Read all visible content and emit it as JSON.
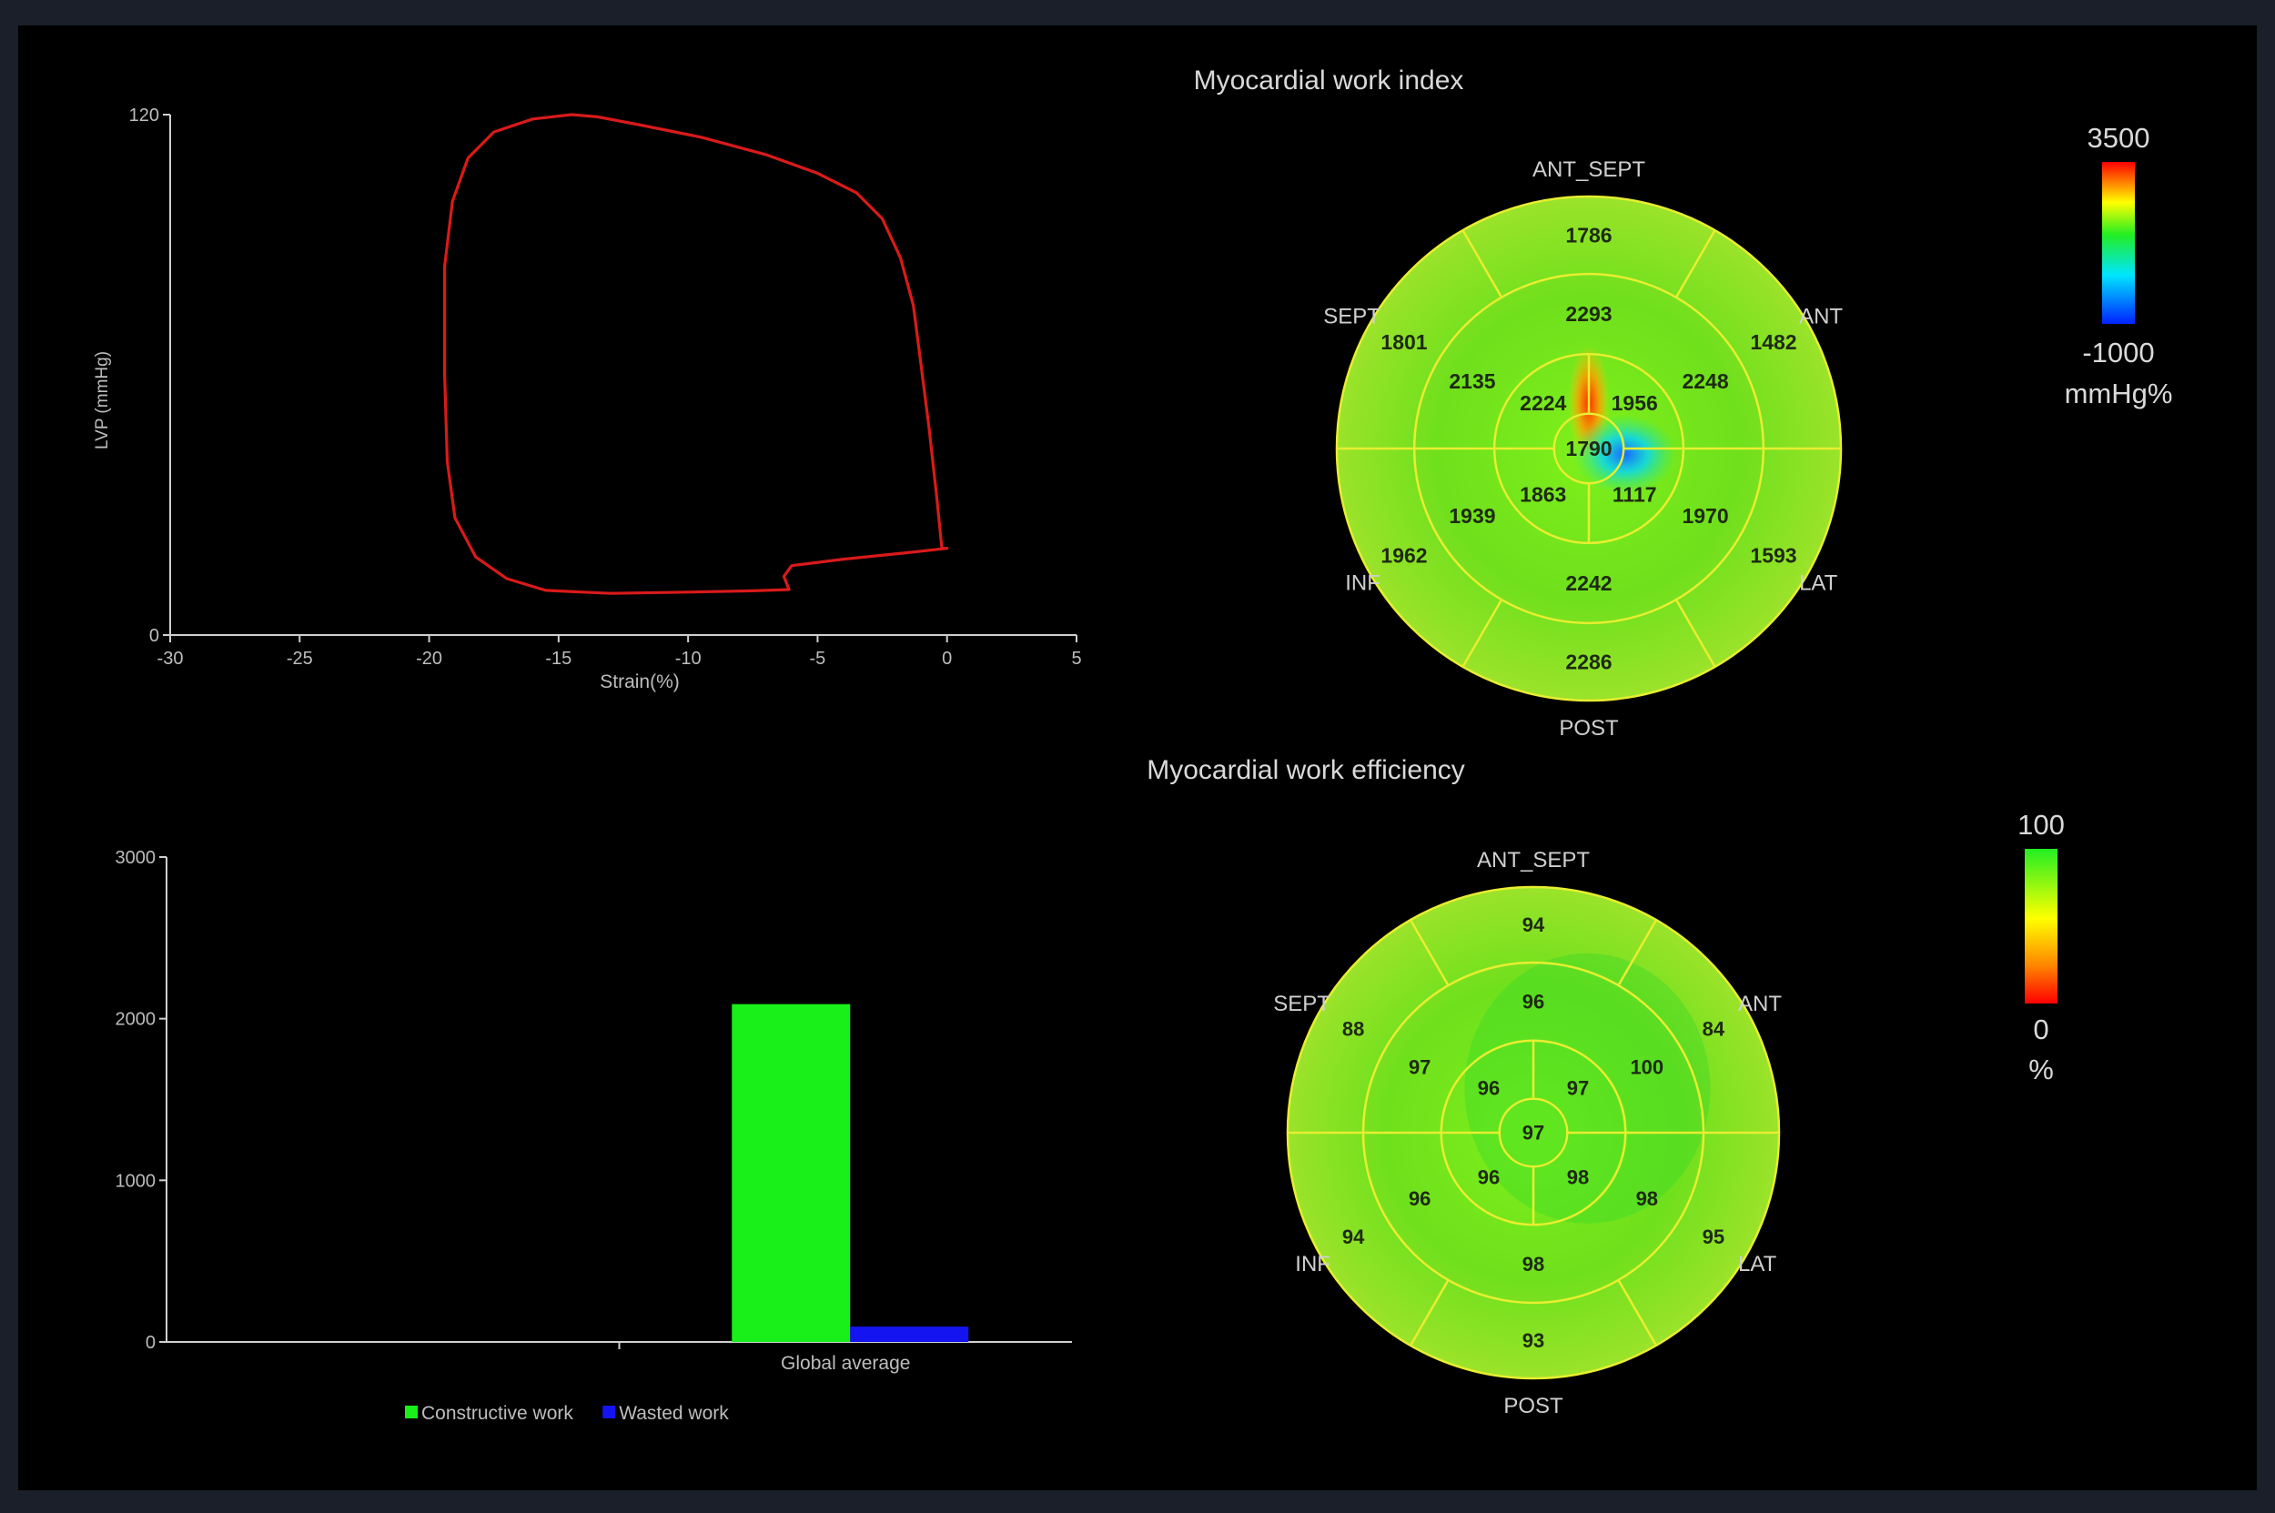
{
  "chart_data": [
    {
      "id": "pv_loop",
      "type": "line",
      "xlabel": "Strain(%)",
      "ylabel": "LVP (mmHg)",
      "xlim": [
        -30,
        5
      ],
      "ylim": [
        0,
        120
      ],
      "xticks": [
        "-30",
        "-25",
        "-20",
        "-15",
        "-10",
        "-5",
        "0",
        "5"
      ],
      "yticks": [
        "0",
        "120"
      ],
      "series": [
        {
          "color": "#d91a1a",
          "points": [
            [
              -14.5,
              120
            ],
            [
              -13.5,
              119.5
            ],
            [
              -12,
              117.8
            ],
            [
              -9.5,
              114.8
            ],
            [
              -7,
              110.8
            ],
            [
              -5,
              106.5
            ],
            [
              -3.5,
              102
            ],
            [
              -2.5,
              96
            ],
            [
              -1.8,
              87
            ],
            [
              -1.3,
              76
            ],
            [
              -1.0,
              62
            ],
            [
              -0.7,
              48
            ],
            [
              -0.4,
              32
            ],
            [
              -0.2,
              20
            ],
            [
              0,
              20
            ],
            [
              -1.5,
              19
            ],
            [
              -4,
              17.5
            ],
            [
              -6,
              16
            ],
            [
              -6.3,
              13.5
            ],
            [
              -6.1,
              10.5
            ],
            [
              -7.5,
              10.2
            ],
            [
              -10,
              9.9
            ],
            [
              -13,
              9.6
            ],
            [
              -15.5,
              10.3
            ],
            [
              -17,
              13
            ],
            [
              -18.2,
              18
            ],
            [
              -19,
              27
            ],
            [
              -19.3,
              40
            ],
            [
              -19.4,
              60
            ],
            [
              -19.4,
              85
            ],
            [
              -19.1,
              100
            ],
            [
              -18.5,
              110
            ],
            [
              -17.5,
              116
            ],
            [
              -16,
              119
            ],
            [
              -14.5,
              120
            ]
          ]
        }
      ]
    },
    {
      "id": "work_bar",
      "type": "bar",
      "categories": [
        "",
        "Global average"
      ],
      "ylim": [
        0,
        3000
      ],
      "yticks": [
        "0",
        "1000",
        "2000",
        "3000"
      ],
      "legend_position": "bottom",
      "series": [
        {
          "name": "Constructive work",
          "color": "#19f019",
          "values": [
            0,
            2090
          ]
        },
        {
          "name": "Wasted work",
          "color": "#1414f0",
          "values": [
            0,
            95
          ]
        }
      ]
    },
    {
      "id": "mwi_bullseye",
      "type": "heatmap",
      "title": "Myocardial work index",
      "labels": {
        "top": "ANT_SEPT",
        "top_right": "ANT",
        "bottom_right": "LAT",
        "bottom": "POST",
        "bottom_left": "INF",
        "top_left": "SEPT"
      },
      "segments": {
        "basal": [
          "1786",
          "1482",
          "1593",
          "2286",
          "1962",
          "1801"
        ],
        "mid": [
          "2293",
          "2248",
          "1970",
          "2242",
          "1939",
          "2135"
        ],
        "apical": [
          "1956",
          "1117",
          "1863",
          "2224"
        ],
        "apex": "1790"
      },
      "scale": {
        "max": "3500",
        "min": "-1000",
        "unit": "mmHg%"
      }
    },
    {
      "id": "mwe_bullseye",
      "type": "heatmap",
      "title": "Myocardial work efficiency",
      "labels": {
        "top": "ANT_SEPT",
        "top_right": "ANT",
        "bottom_right": "LAT",
        "bottom": "POST",
        "bottom_left": "INF",
        "top_left": "SEPT"
      },
      "segments": {
        "basal": [
          "94",
          "84",
          "95",
          "93",
          "94",
          "88"
        ],
        "mid": [
          "96",
          "100",
          "98",
          "98",
          "96",
          "97"
        ],
        "apical": [
          "97",
          "98",
          "96",
          "96"
        ],
        "apex": "97"
      },
      "scale": {
        "max": "100",
        "min": "0",
        "unit": "%"
      }
    }
  ]
}
